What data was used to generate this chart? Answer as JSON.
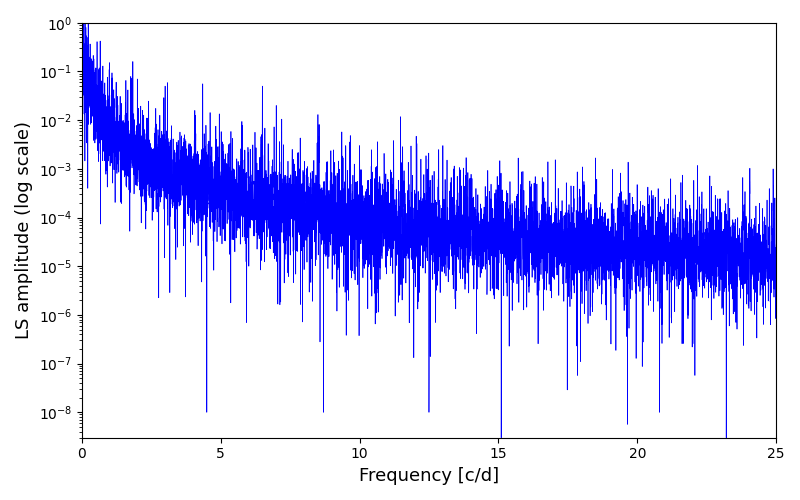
{
  "xlabel": "Frequency [c/d]",
  "ylabel": "LS amplitude (log scale)",
  "xlim": [
    0,
    25
  ],
  "ylim": [
    3e-09,
    1.0
  ],
  "line_color": "#0000FF",
  "line_width": 0.5,
  "background_color": "#ffffff",
  "figsize": [
    8.0,
    5.0
  ],
  "dpi": 100,
  "freq_max": 25.0,
  "n_points": 8000,
  "seed": 7
}
